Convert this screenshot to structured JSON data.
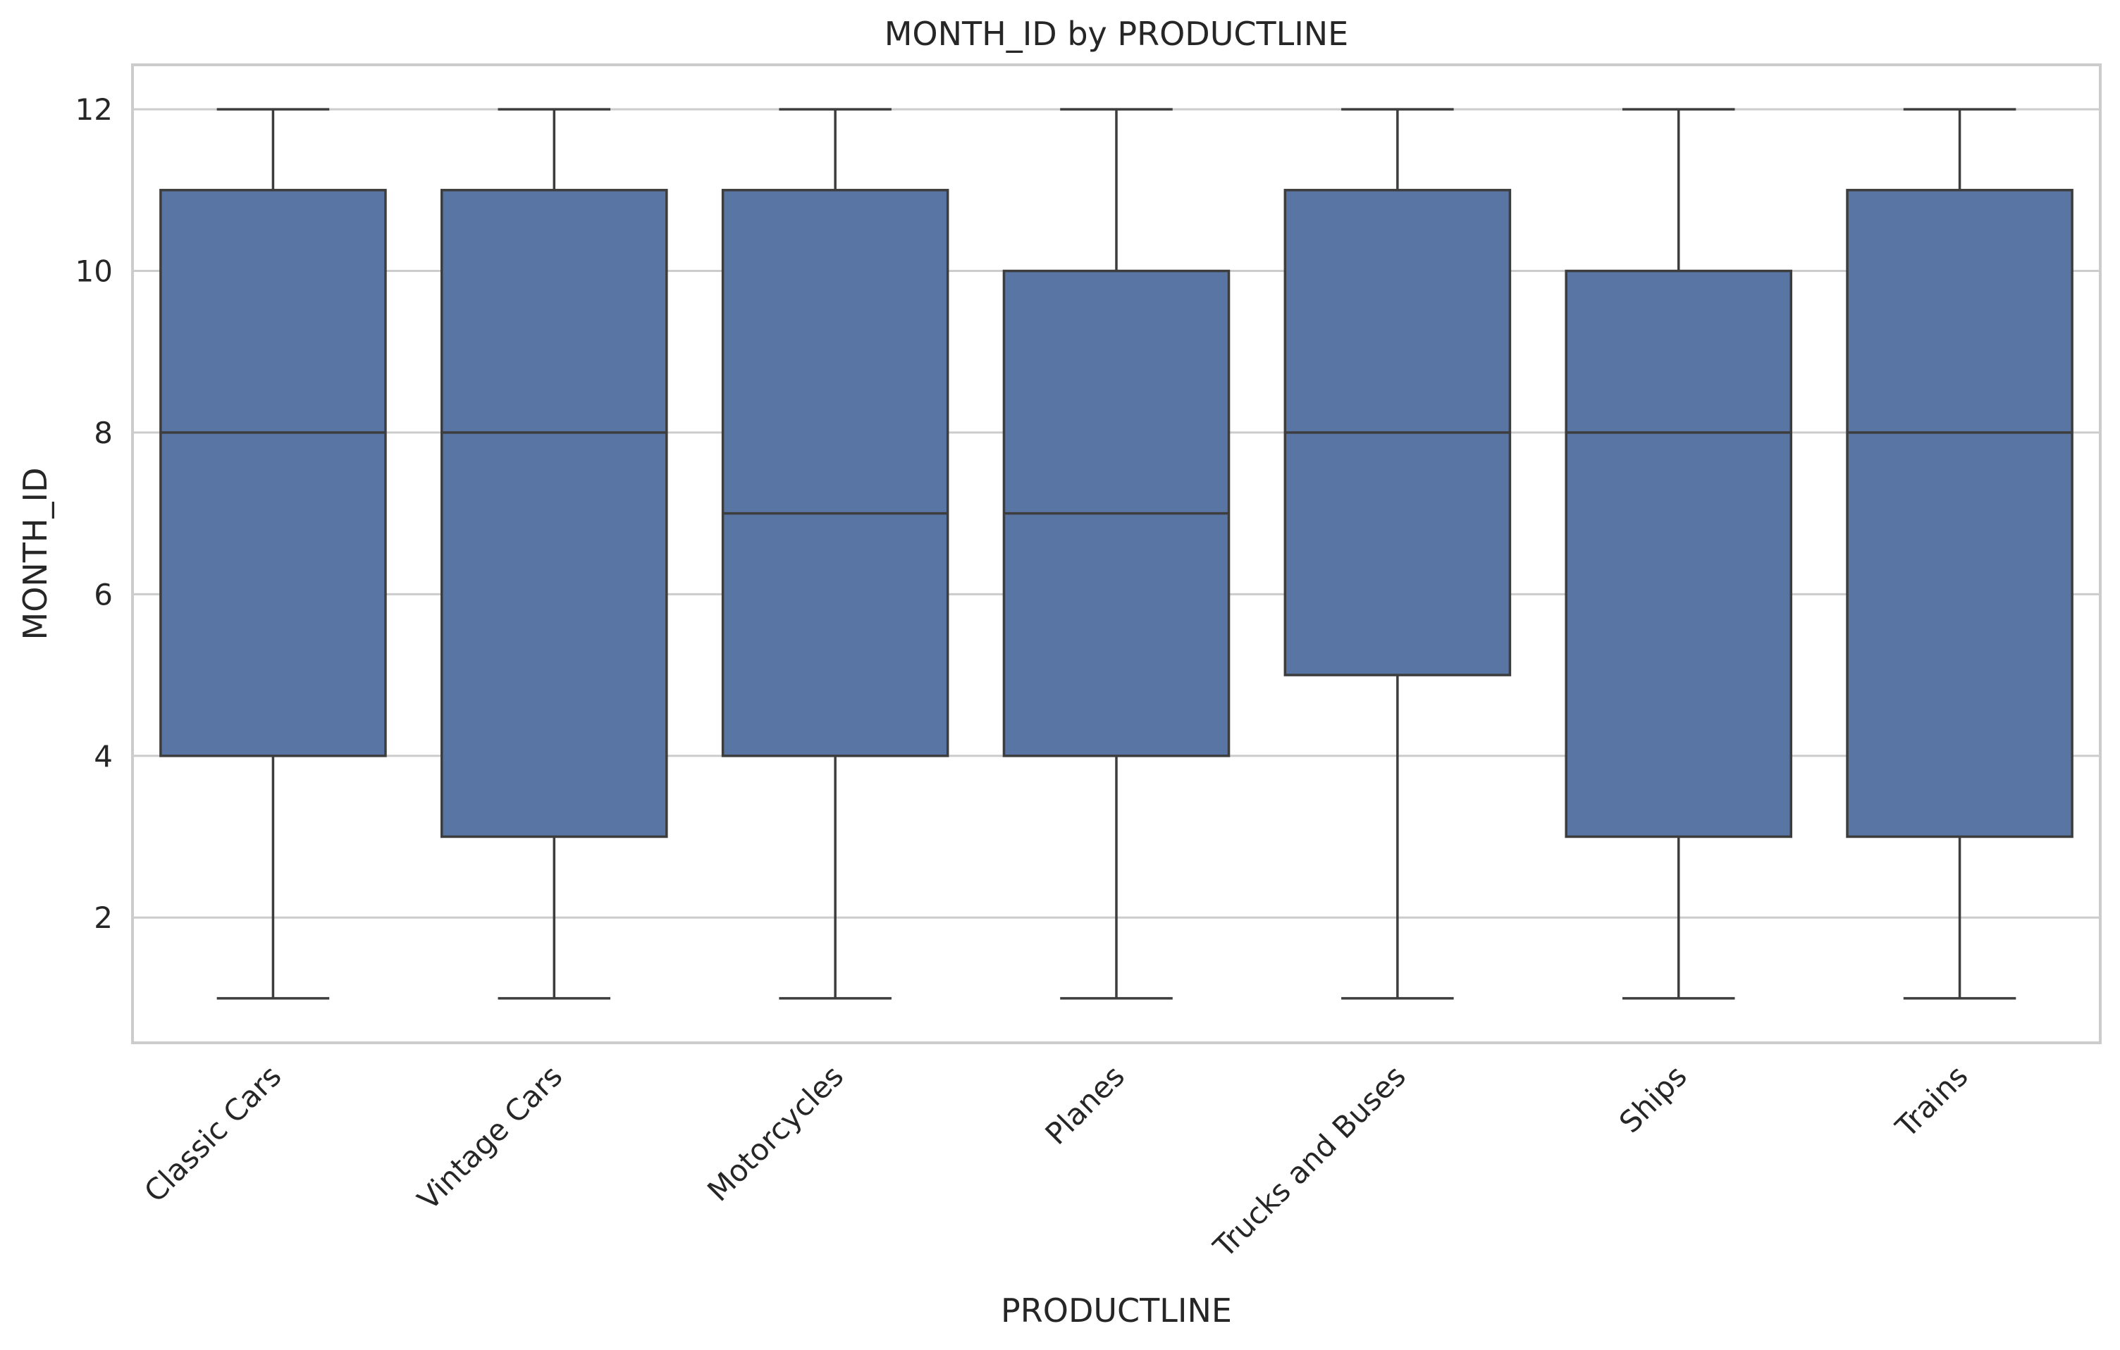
{
  "chart_data": {
    "type": "box",
    "title": "MONTH_ID by PRODUCTLINE",
    "xlabel": "PRODUCTLINE",
    "ylabel": "MONTH_ID",
    "ylim": [
      0.45,
      12.55
    ],
    "yticks": [
      2,
      4,
      6,
      8,
      10,
      12
    ],
    "grid": "horizontal",
    "box_color": "#5875a4",
    "line_color": "#3d3d3d",
    "categories": [
      "Classic Cars",
      "Vintage Cars",
      "Motorcycles",
      "Planes",
      "Trucks and Buses",
      "Ships",
      "Trains"
    ],
    "boxes": [
      {
        "category": "Classic Cars",
        "min": 1,
        "q1": 4,
        "median": 8,
        "q3": 11,
        "max": 12
      },
      {
        "category": "Vintage Cars",
        "min": 1,
        "q1": 3,
        "median": 8,
        "q3": 11,
        "max": 12
      },
      {
        "category": "Motorcycles",
        "min": 1,
        "q1": 4,
        "median": 7,
        "q3": 11,
        "max": 12
      },
      {
        "category": "Planes",
        "min": 1,
        "q1": 4,
        "median": 7,
        "q3": 10,
        "max": 12
      },
      {
        "category": "Trucks and Buses",
        "min": 1,
        "q1": 5,
        "median": 8,
        "q3": 11,
        "max": 12
      },
      {
        "category": "Ships",
        "min": 1,
        "q1": 3,
        "median": 8,
        "q3": 10,
        "max": 12
      },
      {
        "category": "Trains",
        "min": 1,
        "q1": 3,
        "median": 8,
        "q3": 11,
        "max": 12
      }
    ]
  }
}
